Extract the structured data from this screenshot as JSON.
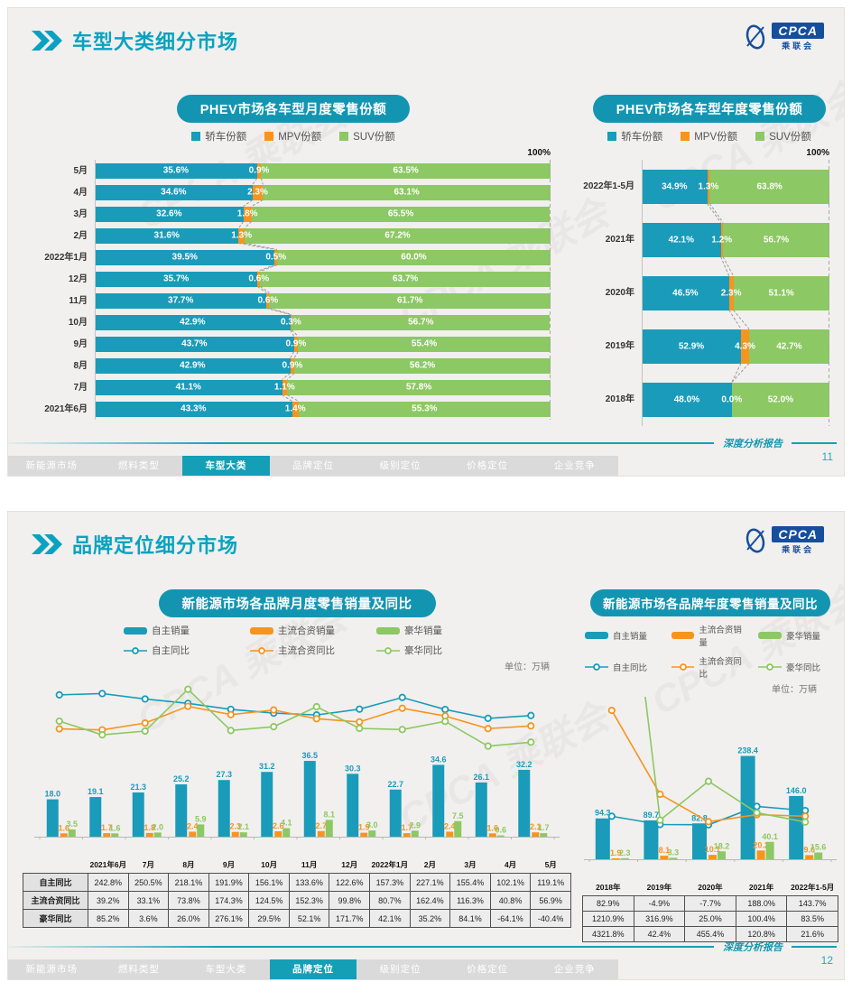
{
  "watermark": "CPCA 乘联会",
  "logo": {
    "text": "CPCA",
    "subtext": "乘联会"
  },
  "footer": {
    "report_label": "深度分析报告",
    "tabs": [
      "新能源市场",
      "燃料类型",
      "车型大类",
      "品牌定位",
      "级别定位",
      "价格定位",
      "企业竞争"
    ]
  },
  "slide1": {
    "title": "车型大类细分市场",
    "page": "11",
    "active_tab": 2
  },
  "slide2": {
    "title": "品牌定位细分市场",
    "page": "12",
    "active_tab": 3
  },
  "chart_data": [
    {
      "type": "bar",
      "stacked": true,
      "orientation": "horizontal",
      "title": "PHEV市场各车型月度零售份额",
      "axis_max_label": "100%",
      "xlim": [
        0,
        100
      ],
      "grid": false,
      "legend_position": "top",
      "categories": [
        "5月",
        "4月",
        "3月",
        "2月",
        "2022年1月",
        "12月",
        "11月",
        "10月",
        "9月",
        "8月",
        "7月",
        "2021年6月"
      ],
      "series": [
        {
          "name": "轿车份额",
          "color": "#1a9bba",
          "values": [
            35.6,
            34.6,
            32.6,
            31.6,
            39.5,
            35.7,
            37.7,
            42.9,
            43.7,
            42.9,
            41.1,
            43.3
          ]
        },
        {
          "name": "MPV份额",
          "color": "#f7941e",
          "values": [
            0.9,
            2.3,
            1.8,
            1.3,
            0.5,
            0.6,
            0.6,
            0.3,
            0.9,
            0.9,
            1.1,
            1.4
          ]
        },
        {
          "name": "SUV份额",
          "color": "#8cc863",
          "values": [
            63.5,
            63.1,
            65.5,
            67.2,
            60.0,
            63.7,
            61.7,
            56.7,
            55.4,
            56.2,
            57.8,
            55.3
          ]
        }
      ]
    },
    {
      "type": "bar",
      "stacked": true,
      "orientation": "horizontal",
      "title": "PHEV市场各车型年度零售份额",
      "axis_max_label": "100%",
      "xlim": [
        0,
        100
      ],
      "grid": false,
      "legend_position": "top",
      "categories": [
        "2022年1-5月",
        "2021年",
        "2020年",
        "2019年",
        "2018年"
      ],
      "series": [
        {
          "name": "轿车份额",
          "color": "#1a9bba",
          "values": [
            34.9,
            42.1,
            46.5,
            52.9,
            48.0
          ]
        },
        {
          "name": "MPV份额",
          "color": "#f7941e",
          "values": [
            1.3,
            1.2,
            2.3,
            4.3,
            0.0
          ]
        },
        {
          "name": "SUV份额",
          "color": "#8cc863",
          "values": [
            63.8,
            56.7,
            51.1,
            42.7,
            52.0
          ]
        }
      ]
    },
    {
      "type": "bar+line",
      "title": "新能源市场各品牌月度零售销量及同比",
      "unit_label": "单位：万辆",
      "legend_position": "top",
      "categories": [
        "2021年6月",
        "7月",
        "8月",
        "9月",
        "10月",
        "11月",
        "12月",
        "2022年1月",
        "2月",
        "3月",
        "4月",
        "5月"
      ],
      "bar_series": [
        {
          "name": "自主销量",
          "color": "#1a9bba",
          "values": [
            18.0,
            19.1,
            21.3,
            25.2,
            27.3,
            31.2,
            36.5,
            30.3,
            22.7,
            34.6,
            26.1,
            32.2
          ]
        },
        {
          "name": "主流合资销量",
          "color": "#f7941e",
          "values": [
            1.6,
            1.7,
            1.8,
            2.4,
            2.3,
            2.6,
            2.7,
            1.9,
            1.7,
            2.4,
            1.6,
            2.1
          ]
        },
        {
          "name": "豪华销量",
          "color": "#8cc863",
          "values": [
            3.5,
            1.6,
            2.0,
            5.9,
            2.1,
            4.1,
            8.1,
            3.0,
            2.9,
            7.5,
            0.6,
            1.7
          ]
        }
      ],
      "line_series": [
        {
          "name": "自主同比",
          "color": "#1a9bba",
          "values": [
            242.8,
            250.5,
            218.1,
            191.9,
            156.1,
            133.6,
            122.6,
            157.3,
            227.1,
            155.4,
            102.1,
            119.1
          ]
        },
        {
          "name": "主流合资同比",
          "color": "#f7941e",
          "values": [
            39.2,
            33.1,
            73.8,
            174.3,
            124.5,
            152.3,
            99.8,
            80.7,
            162.4,
            116.3,
            40.8,
            56.9
          ]
        },
        {
          "name": "豪华同比",
          "color": "#8cc863",
          "values": [
            85.2,
            3.6,
            26.0,
            276.1,
            29.5,
            52.1,
            171.7,
            42.1,
            35.2,
            84.1,
            -64.1,
            -40.4
          ]
        }
      ]
    },
    {
      "type": "bar+line",
      "title": "新能源市场各品牌年度零售销量及同比",
      "unit_label": "单位：万辆",
      "legend_position": "top",
      "categories": [
        "2018年",
        "2019年",
        "2020年",
        "2021年",
        "2022年1-5月"
      ],
      "bar_series": [
        {
          "name": "自主销量",
          "color": "#1a9bba",
          "values": [
            94.3,
            89.7,
            82.8,
            238.4,
            146.0
          ]
        },
        {
          "name": "主流合资销量",
          "color": "#f7941e",
          "values": [
            1.9,
            8.1,
            10.1,
            20.2,
            9.6
          ]
        },
        {
          "name": "豪华销量",
          "color": "#8cc863",
          "values": [
            2.3,
            3.3,
            18.2,
            40.1,
            15.6
          ]
        }
      ],
      "line_series": [
        {
          "name": "自主同比",
          "color": "#1a9bba",
          "values": [
            82.9,
            -4.9,
            -7.7,
            188.0,
            143.7
          ]
        },
        {
          "name": "主流合资同比",
          "color": "#f7941e",
          "values": [
            1210.9,
            316.9,
            25.0,
            100.4,
            83.5
          ]
        },
        {
          "name": "豪华同比",
          "color": "#8cc863",
          "values": [
            4321.8,
            42.4,
            455.4,
            120.8,
            21.6
          ]
        }
      ]
    }
  ]
}
